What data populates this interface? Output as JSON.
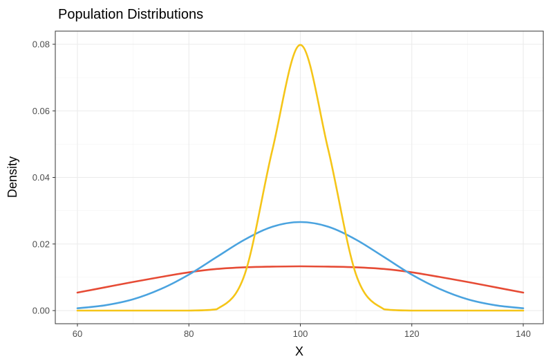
{
  "chart_data": {
    "type": "line",
    "title": "Population Distributions",
    "xlabel": "X",
    "ylabel": "Density",
    "xlim": [
      60,
      140
    ],
    "ylim": [
      0,
      0.08
    ],
    "x_ticks": [
      60,
      80,
      100,
      120,
      140
    ],
    "x_tick_labels": [
      "60",
      "80",
      "100",
      "120",
      "140"
    ],
    "y_ticks": [
      0,
      0.02,
      0.04,
      0.06,
      0.08
    ],
    "y_tick_labels": [
      "0.00",
      "0.02",
      "0.04",
      "0.06",
      "0.08"
    ],
    "grid": true,
    "legend": "none",
    "x": [
      60,
      65,
      70,
      75,
      80,
      85,
      90,
      95,
      100,
      105,
      110,
      115,
      120,
      125,
      130,
      135,
      140
    ],
    "series": [
      {
        "color": "#E64B35",
        "values": [
          0.0054,
          0.007,
          0.0086,
          0.0101,
          0.0115,
          0.0125,
          0.013,
          0.0132,
          0.0133,
          0.0132,
          0.013,
          0.0125,
          0.0115,
          0.0101,
          0.0086,
          0.007,
          0.0054
        ]
      },
      {
        "color": "#4AA3DF",
        "values": [
          0.0007,
          0.0016,
          0.0034,
          0.0065,
          0.0108,
          0.0161,
          0.0213,
          0.0252,
          0.0266,
          0.0252,
          0.0213,
          0.0161,
          0.0108,
          0.0065,
          0.0034,
          0.0016,
          0.0007
        ]
      },
      {
        "color": "#F5C518",
        "values": [
          0.0,
          0.0,
          0.0,
          0.0,
          0.0,
          0.0004,
          0.0108,
          0.0484,
          0.0798,
          0.0484,
          0.0108,
          0.0004,
          0.0,
          0.0,
          0.0,
          0.0,
          0.0
        ]
      }
    ]
  }
}
